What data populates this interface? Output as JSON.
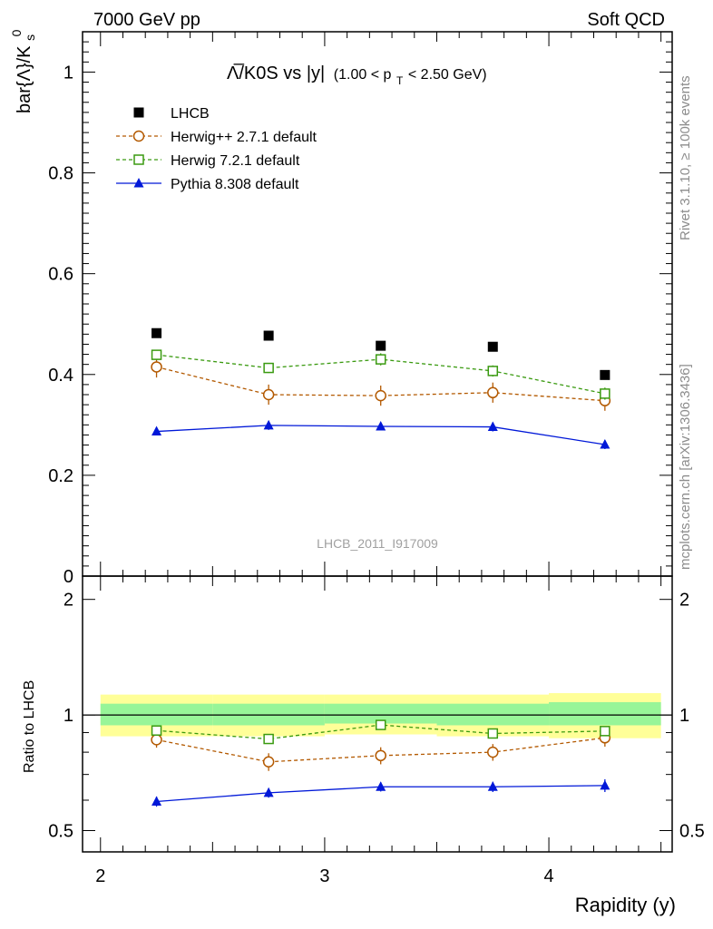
{
  "header": {
    "left": "7000 GeV pp",
    "right": "Soft QCD"
  },
  "side_labels": {
    "rivet": "Rivet 3.1.10, ≥ 100k events",
    "mcplots": "mcplots.cern.ch [arXiv:1306.3436]"
  },
  "watermark": "LHCB_2011_I917009",
  "title_parts": {
    "main": "Λ̅/K0S vs |y|",
    "range_pre": "(1.00 < p",
    "range_sub": "T",
    "range_post": " < 2.50 GeV)"
  },
  "ylabel_parts": {
    "main": "bar{Λ}/K",
    "sup": "0",
    "sub": "s"
  },
  "colors": {
    "lhcb": "#000000",
    "herwigpp": "#b35900",
    "herwig7": "#3a9a10",
    "pythia": "#0018d8",
    "band_inner": "#98f598",
    "band_outer": "#ffff98"
  },
  "chart_data": [
    {
      "type": "scatter",
      "panel": "main",
      "ylabel": "bar{Λ}/K0s",
      "xlim": [
        1.92,
        4.55
      ],
      "ylim": [
        0,
        1.08
      ],
      "y_ticks": [
        "0",
        "0.2",
        "0.4",
        "0.6",
        "0.8",
        "1"
      ],
      "y_tick_values": [
        0,
        0.2,
        0.4,
        0.6,
        0.8,
        1.0
      ],
      "x": [
        2.25,
        2.75,
        3.25,
        3.75,
        4.25
      ],
      "series": [
        {
          "name": "LHCB",
          "key": "lhcb",
          "style": "square-filled",
          "line": "none",
          "values": [
            0.482,
            0.477,
            0.457,
            0.455,
            0.399
          ],
          "errors": [
            0.0,
            0.0,
            0.0,
            0.0,
            0.0
          ]
        },
        {
          "name": "Herwig++ 2.7.1 default",
          "key": "herwigpp",
          "style": "circle-open",
          "line": "dashed",
          "values": [
            0.415,
            0.36,
            0.358,
            0.364,
            0.348
          ],
          "errors": [
            0.021,
            0.02,
            0.02,
            0.02,
            0.02
          ]
        },
        {
          "name": "Herwig 7.2.1 default",
          "key": "herwig7",
          "style": "square-open",
          "line": "dashed",
          "values": [
            0.439,
            0.413,
            0.43,
            0.407,
            0.362
          ],
          "errors": [
            0.01,
            0.01,
            0.012,
            0.011,
            0.012
          ]
        },
        {
          "name": "Pythia 8.308 default",
          "key": "pythia",
          "style": "triangle-filled",
          "line": "solid",
          "values": [
            0.287,
            0.299,
            0.297,
            0.296,
            0.261
          ],
          "errors": [
            0.008,
            0.009,
            0.008,
            0.009,
            0.009
          ]
        }
      ]
    },
    {
      "type": "line",
      "panel": "ratio",
      "xlabel": "Rapidity (y)",
      "ylabel": "Ratio to LHCB",
      "xlim": [
        1.92,
        4.55
      ],
      "ylim": [
        0.44,
        2.3
      ],
      "log_y": true,
      "x_ticks": [
        "2",
        "3",
        "4"
      ],
      "x_tick_values": [
        2,
        3,
        4
      ],
      "y_ticks": [
        "0.5",
        "1",
        "2"
      ],
      "y_tick_values": [
        0.5,
        1,
        2
      ],
      "x": [
        2.25,
        2.75,
        3.25,
        3.75,
        4.25
      ],
      "bands": [
        {
          "x_from": 2.0,
          "x_to": 2.5,
          "inner": [
            0.94,
            1.07
          ],
          "outer": [
            0.88,
            1.13
          ]
        },
        {
          "x_from": 2.5,
          "x_to": 3.0,
          "inner": [
            0.94,
            1.07
          ],
          "outer": [
            0.88,
            1.13
          ]
        },
        {
          "x_from": 3.0,
          "x_to": 3.5,
          "inner": [
            0.95,
            1.07
          ],
          "outer": [
            0.89,
            1.13
          ]
        },
        {
          "x_from": 3.5,
          "x_to": 4.0,
          "inner": [
            0.94,
            1.07
          ],
          "outer": [
            0.88,
            1.13
          ]
        },
        {
          "x_from": 4.0,
          "x_to": 4.5,
          "inner": [
            0.94,
            1.08
          ],
          "outer": [
            0.87,
            1.14
          ]
        }
      ],
      "series": [
        {
          "name": "Herwig++ 2.7.1 default",
          "key": "herwigpp",
          "style": "circle-open",
          "line": "dashed",
          "values": [
            0.862,
            0.755,
            0.784,
            0.8,
            0.872
          ],
          "errors": [
            0.04,
            0.04,
            0.04,
            0.04,
            0.045
          ]
        },
        {
          "name": "Herwig 7.2.1 default",
          "key": "herwig7",
          "style": "square-open",
          "line": "dashed",
          "values": [
            0.911,
            0.866,
            0.942,
            0.895,
            0.908
          ],
          "errors": [
            0.02,
            0.02,
            0.025,
            0.022,
            0.025
          ]
        },
        {
          "name": "Pythia 8.308 default",
          "key": "pythia",
          "style": "triangle-filled",
          "line": "solid",
          "values": [
            0.595,
            0.627,
            0.65,
            0.65,
            0.655
          ],
          "errors": [
            0.018,
            0.018,
            0.018,
            0.02,
            0.025
          ]
        }
      ]
    }
  ]
}
